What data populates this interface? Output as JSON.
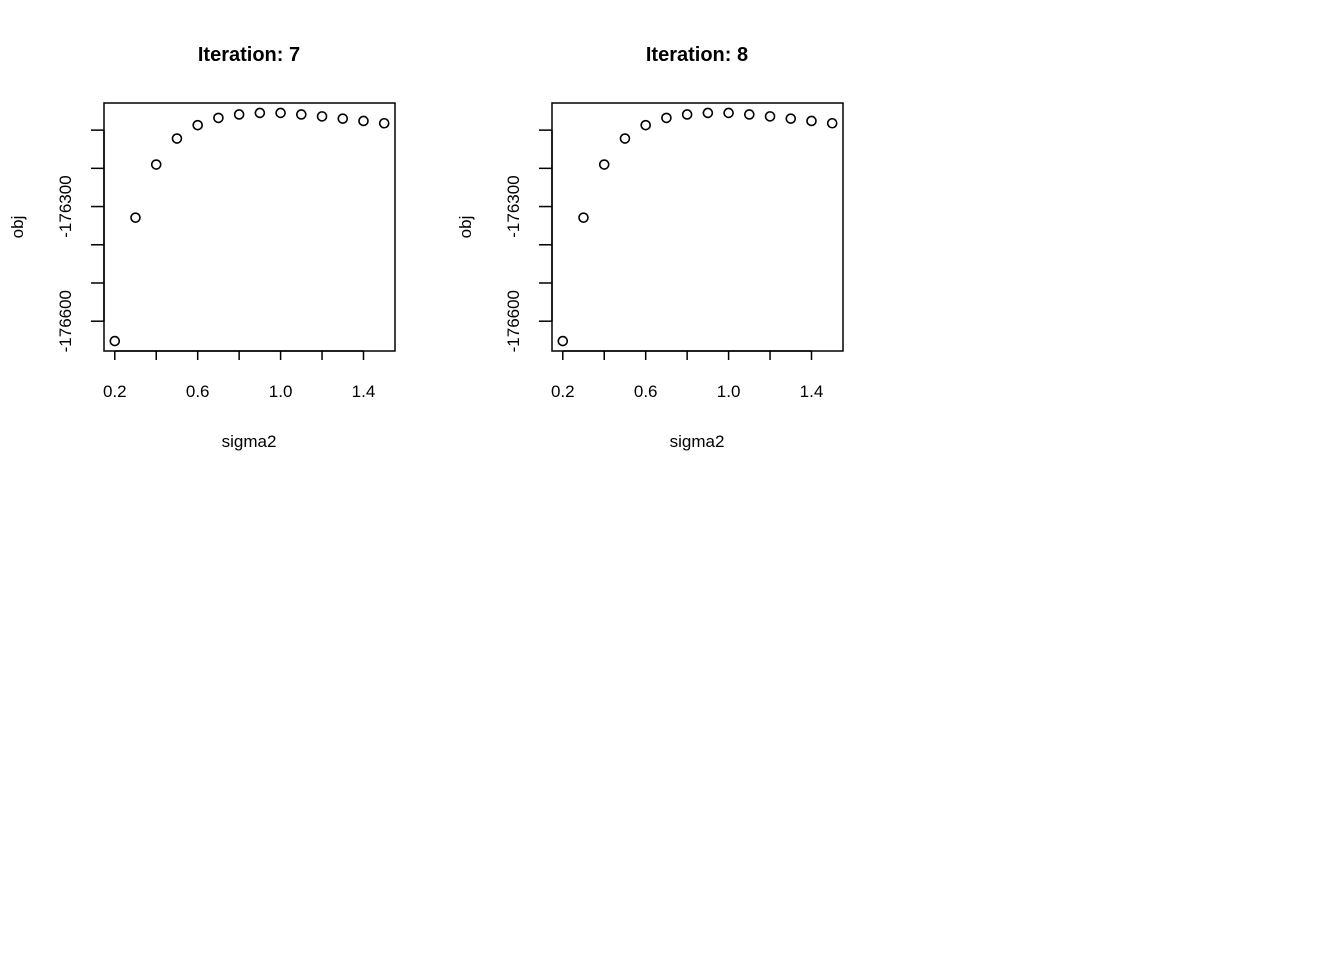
{
  "chart_data": [
    {
      "type": "scatter",
      "title": "Iteration: 7",
      "xlabel": "sigma2",
      "ylabel": "obj",
      "xlim": [
        0.148,
        1.552
      ],
      "ylim": [
        -176678,
        -176029
      ],
      "xticks": [
        0.2,
        0.4,
        0.6,
        0.8,
        1.0,
        1.2,
        1.4
      ],
      "xtick_labels": [
        "0.2",
        "",
        "0.6",
        "",
        "1.0",
        "",
        "1.4"
      ],
      "yticks": [
        -176100,
        -176200,
        -176300,
        -176400,
        -176500,
        -176600
      ],
      "ytick_labels": [
        "",
        "",
        "-176300",
        "",
        "",
        "-176600"
      ],
      "grid": false,
      "marker": "open-circle",
      "x": [
        0.2,
        0.3,
        0.4,
        0.5,
        0.6,
        0.7,
        0.8,
        0.9,
        1.0,
        1.1,
        1.2,
        1.3,
        1.4,
        1.5
      ],
      "y": [
        -176652,
        -176329,
        -176190,
        -176122,
        -176087,
        -176068,
        -176059,
        -176055,
        -176055,
        -176059,
        -176064,
        -176070,
        -176076,
        -176082
      ]
    },
    {
      "type": "scatter",
      "title": "Iteration: 8",
      "xlabel": "sigma2",
      "ylabel": "obj",
      "xlim": [
        0.148,
        1.552
      ],
      "ylim": [
        -176678,
        -176029
      ],
      "xticks": [
        0.2,
        0.4,
        0.6,
        0.8,
        1.0,
        1.2,
        1.4
      ],
      "xtick_labels": [
        "0.2",
        "",
        "0.6",
        "",
        "1.0",
        "",
        "1.4"
      ],
      "yticks": [
        -176100,
        -176200,
        -176300,
        -176400,
        -176500,
        -176600
      ],
      "ytick_labels": [
        "",
        "",
        "-176300",
        "",
        "",
        "-176600"
      ],
      "grid": false,
      "marker": "open-circle",
      "x": [
        0.2,
        0.3,
        0.4,
        0.5,
        0.6,
        0.7,
        0.8,
        0.9,
        1.0,
        1.1,
        1.2,
        1.3,
        1.4,
        1.5
      ],
      "y": [
        -176652,
        -176329,
        -176190,
        -176122,
        -176087,
        -176068,
        -176059,
        -176055,
        -176055,
        -176059,
        -176064,
        -176070,
        -176076,
        -176082
      ]
    }
  ]
}
